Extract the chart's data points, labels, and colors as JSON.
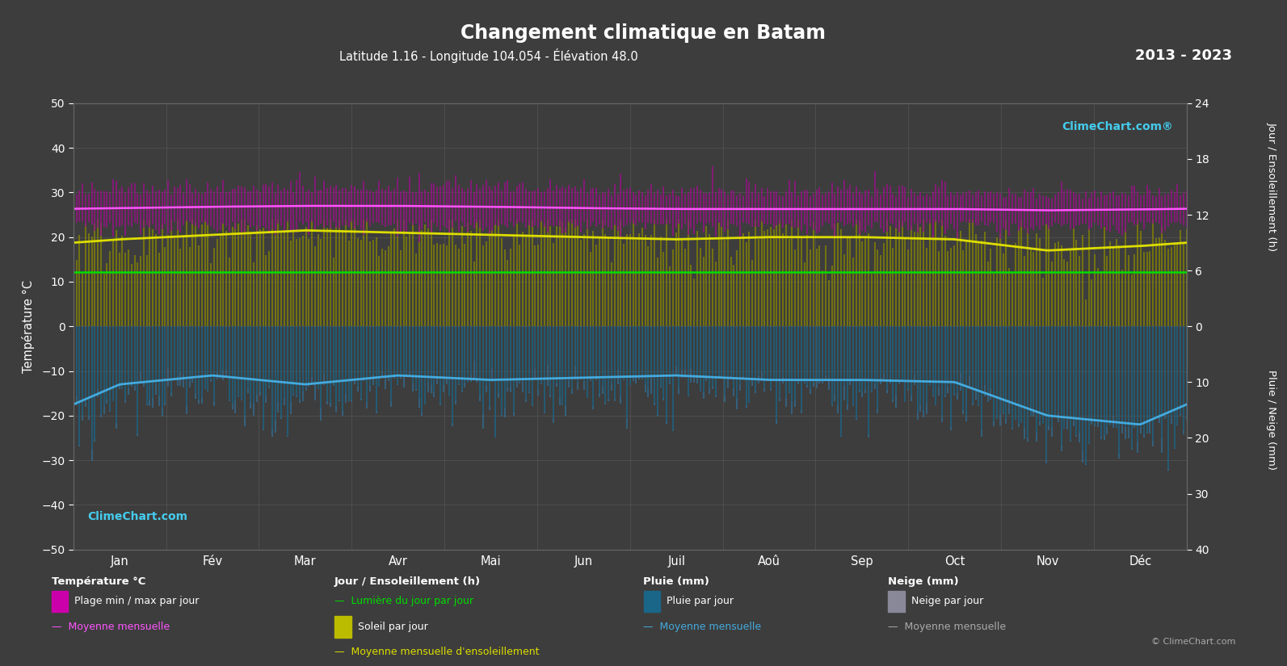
{
  "title": "Changement climatique en Batam",
  "subtitle": "Latitude 1.16 - Longitude 104.054 - Élévation 48.0",
  "year_range": "2013 - 2023",
  "background_color": "#3d3d3d",
  "plot_bg_color": "#3d3d3d",
  "months": [
    "Jan",
    "Fév",
    "Mar",
    "Avr",
    "Mai",
    "Jun",
    "Juil",
    "Aoû",
    "Sep",
    "Oct",
    "Nov",
    "Déc"
  ],
  "left_ylim": [
    -50,
    50
  ],
  "temp_min_monthly": [
    23.5,
    23.5,
    23.5,
    23.5,
    23.5,
    23.5,
    23.5,
    23.5,
    23.5,
    23.5,
    23.5,
    23.5
  ],
  "temp_max_monthly": [
    29.5,
    29.5,
    30.0,
    30.0,
    30.0,
    29.5,
    29.0,
    29.0,
    29.0,
    29.0,
    28.5,
    29.0
  ],
  "temp_mean_monthly": [
    26.5,
    26.8,
    27.0,
    27.0,
    26.8,
    26.5,
    26.3,
    26.3,
    26.3,
    26.3,
    26.0,
    26.2
  ],
  "sunshine_mean_monthly": [
    19.5,
    20.5,
    21.5,
    21.0,
    20.5,
    20.0,
    19.5,
    20.0,
    20.0,
    19.5,
    17.0,
    18.0
  ],
  "daylight_monthly": [
    12.1,
    12.1,
    12.1,
    12.1,
    12.1,
    12.1,
    12.1,
    12.1,
    12.1,
    12.1,
    12.1,
    12.1
  ],
  "rain_mean_monthly": [
    -13.0,
    -11.0,
    -13.0,
    -11.0,
    -12.0,
    -11.5,
    -11.0,
    -12.0,
    -12.0,
    -12.5,
    -20.0,
    -22.0
  ],
  "colors": {
    "magenta_band": "#cc00aa",
    "magenta_line": "#ff55ff",
    "green_daylight": "#00dd00",
    "yellow_sunshine": "#bbbb00",
    "yellow_sun_line": "#dddd00",
    "blue_rain_bar": "#1a6688",
    "blue_rain_line": "#44aadd",
    "gray_snow_bar": "#557799",
    "grid": "#555555",
    "text": "#ffffff",
    "bg": "#3d3d3d"
  },
  "grid_xticks": [
    0,
    1,
    2,
    3,
    4,
    5,
    6,
    7,
    8,
    9,
    10,
    11,
    12
  ],
  "grid_yticks": [
    -50,
    -40,
    -30,
    -20,
    -10,
    0,
    10,
    20,
    30,
    40,
    50
  ]
}
